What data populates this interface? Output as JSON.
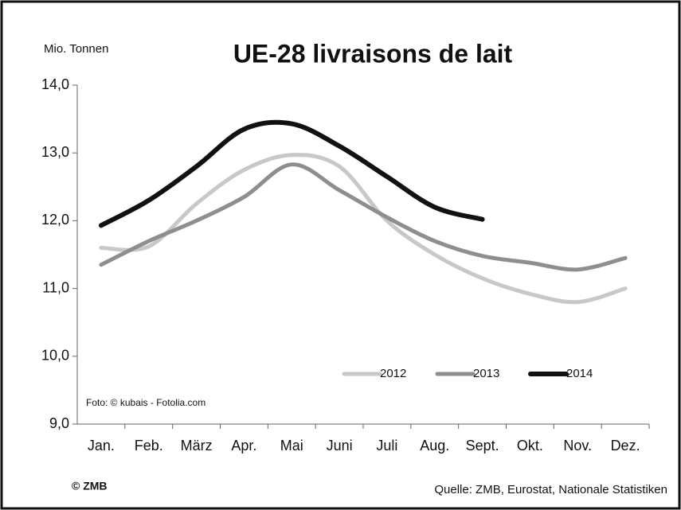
{
  "chart_data": {
    "type": "line",
    "title": "UE-28 livraisons de lait",
    "y_label": "Mio. Tonnen",
    "photo_credit": "Foto: © kubais - Fotolia.com",
    "copyright": "© ZMB",
    "source": "Quelle: ZMB, Eurostat,  Nationale Statistiken",
    "categories": [
      "Jan.",
      "Feb.",
      "März",
      "Apr.",
      "Mai",
      "Juni",
      "Juli",
      "Aug.",
      "Sept.",
      "Okt.",
      "Nov.",
      "Dez."
    ],
    "series": [
      {
        "name": "2012",
        "color": "#c8c8c8",
        "values": [
          11.6,
          11.62,
          12.25,
          12.75,
          12.97,
          12.8,
          12.0,
          11.5,
          11.15,
          10.92,
          10.8,
          11.0
        ]
      },
      {
        "name": "2013",
        "color": "#8e8e8e",
        "values": [
          11.35,
          11.7,
          12.0,
          12.35,
          12.83,
          12.45,
          12.05,
          11.7,
          11.48,
          11.38,
          11.28,
          11.45
        ]
      },
      {
        "name": "2014",
        "color": "#111111",
        "values": [
          11.93,
          12.3,
          12.8,
          13.35,
          13.43,
          13.1,
          12.65,
          12.2,
          12.02,
          null,
          null,
          null
        ]
      }
    ],
    "ylim": [
      9,
      14
    ],
    "yticks": [
      {
        "value": 9,
        "label": "9,0"
      },
      {
        "value": 10,
        "label": "10,0"
      },
      {
        "value": 11,
        "label": "11,0"
      },
      {
        "value": 12,
        "label": "12,0"
      },
      {
        "value": 13,
        "label": "13,0"
      },
      {
        "value": 14,
        "label": "14,0"
      }
    ],
    "grid": false,
    "legend": "bottom-right"
  }
}
